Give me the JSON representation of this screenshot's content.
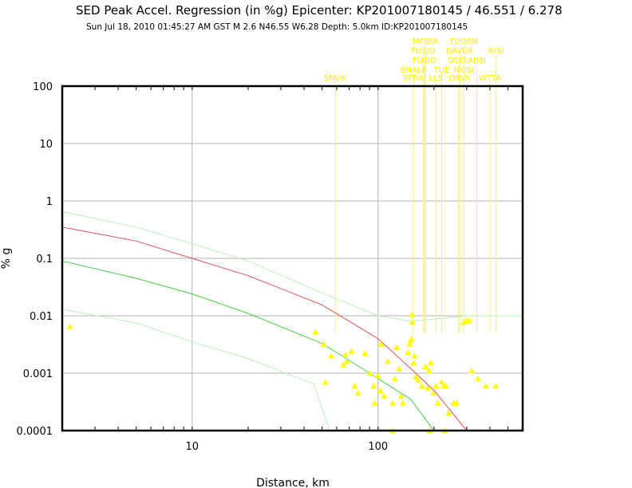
{
  "chart_data": {
    "type": "scatter",
    "title": "SED Peak Accel. Regression (in %g) Epicenter: KP201007180145 / 46.551 / 6.278",
    "subtitle": "Sun Jul 18, 2010 01:45:27 AM GST   M 2.6   N46.55 W6.28   Depth: 5.0km   ID:KP201007180145",
    "xlabel": "Distance, km",
    "ylabel": "% g",
    "x_scale": "log",
    "y_scale": "log",
    "xlim": [
      2,
      600
    ],
    "ylim": [
      0.0001,
      100
    ],
    "x_ticks": [
      "10",
      "100"
    ],
    "y_ticks": [
      "100",
      "10",
      "1",
      "0.1",
      "0.01",
      "0.001",
      "0.0001"
    ],
    "grid": true,
    "colors": {
      "frame": "#000000",
      "grid": "#b4b4b4",
      "mean_curve": "#e05050",
      "lower_curve": "#44d044",
      "upper_band": "#b8f0b8",
      "lower_band": "#b8f0b8",
      "markers": "#ffff00",
      "station_labels": "#ffee00",
      "leader_lines": "#f4f088"
    },
    "curves": [
      {
        "role": "mean",
        "points": [
          [
            2,
            0.35
          ],
          [
            5,
            0.2
          ],
          [
            10,
            0.1
          ],
          [
            20,
            0.05
          ],
          [
            50,
            0.0155
          ],
          [
            100,
            0.004
          ],
          [
            150,
            0.0012
          ],
          [
            200,
            0.0005
          ],
          [
            300,
            0.0001
          ]
        ]
      },
      {
        "role": "lower",
        "points": [
          [
            2,
            0.09
          ],
          [
            5,
            0.045
          ],
          [
            10,
            0.024
          ],
          [
            20,
            0.011
          ],
          [
            50,
            0.0033
          ],
          [
            90,
            0.001
          ],
          [
            150,
            0.00035
          ],
          [
            200,
            0.0001
          ]
        ]
      },
      {
        "role": "upper-band",
        "points": [
          [
            2,
            0.65
          ],
          [
            5,
            0.35
          ],
          [
            10,
            0.18
          ],
          [
            20,
            0.09
          ],
          [
            50,
            0.025
          ],
          [
            100,
            0.01
          ],
          [
            150,
            0.008
          ],
          [
            300,
            0.01
          ],
          [
            600,
            0.01
          ]
        ]
      },
      {
        "role": "lower-band",
        "points": [
          [
            2,
            0.013
          ],
          [
            5,
            0.0075
          ],
          [
            10,
            0.0035
          ],
          [
            20,
            0.0018
          ],
          [
            45,
            0.00065
          ],
          [
            55,
            0.0001
          ]
        ]
      }
    ],
    "points": [
      [
        2.2,
        0.0065
      ],
      [
        46,
        0.0052
      ],
      [
        51,
        0.0032
      ],
      [
        52,
        0.0007
      ],
      [
        56,
        0.002
      ],
      [
        65,
        0.0014
      ],
      [
        67,
        0.0021
      ],
      [
        68,
        0.0016
      ],
      [
        72,
        0.0024
      ],
      [
        75,
        0.0006
      ],
      [
        78,
        0.00045
      ],
      [
        85,
        0.0022
      ],
      [
        90,
        0.001
      ],
      [
        95,
        0.0006
      ],
      [
        96,
        0.0003
      ],
      [
        100,
        0.0009
      ],
      [
        103,
        0.0005
      ],
      [
        104,
        0.0032
      ],
      [
        108,
        0.0004
      ],
      [
        113,
        0.0016
      ],
      [
        120,
        0.0003
      ],
      [
        123,
        0.0008
      ],
      [
        126,
        0.0028
      ],
      [
        130,
        0.0012
      ],
      [
        133,
        0.0004
      ],
      [
        136,
        0.0003
      ],
      [
        145,
        0.0023
      ],
      [
        148,
        0.0032
      ],
      [
        150,
        0.0038
      ],
      [
        151,
        0.004
      ],
      [
        152,
        0.0105
      ],
      [
        153,
        0.0078
      ],
      [
        155,
        0.0015
      ],
      [
        157,
        0.002
      ],
      [
        160,
        0.00085
      ],
      [
        165,
        0.00075
      ],
      [
        172,
        0.0006
      ],
      [
        180,
        0.0013
      ],
      [
        185,
        0.00055
      ],
      [
        188,
        0.0011
      ],
      [
        192,
        0.0015
      ],
      [
        198,
        0.00045
      ],
      [
        205,
        0.0006
      ],
      [
        210,
        0.0003
      ],
      [
        220,
        0.0007
      ],
      [
        226,
        0.0006
      ],
      [
        232,
        0.0006
      ],
      [
        240,
        0.0002
      ],
      [
        255,
        0.0003
      ],
      [
        265,
        0.0003
      ],
      [
        290,
        0.0078
      ],
      [
        300,
        0.0083
      ],
      [
        310,
        0.0082
      ],
      [
        320,
        0.0011
      ],
      [
        345,
        0.0008
      ],
      [
        380,
        0.0006
      ],
      [
        430,
        0.0006
      ],
      [
        120,
        0.0001
      ],
      [
        190,
        0.0001
      ],
      [
        230,
        0.0001
      ]
    ],
    "stations": [
      {
        "name": "SMUK",
        "x": 59
      },
      {
        "name": "MFSFA",
        "x": 180
      },
      {
        "name": "FUORN",
        "x": 290
      },
      {
        "name": "FUSIO",
        "x": 175
      },
      {
        "name": "DAVOX",
        "x": 275
      },
      {
        "name": "RISI",
        "x": 430
      },
      {
        "name": "FUSIO",
        "x": 178
      },
      {
        "name": "SGEL",
        "x": 270
      },
      {
        "name": "ABSI",
        "x": 340
      },
      {
        "name": "BNALP",
        "x": 155
      },
      {
        "name": "TUE",
        "x": 220
      },
      {
        "name": "MOSI",
        "x": 290
      },
      {
        "name": "SFRA",
        "x": 155
      },
      {
        "name": "LLS",
        "x": 205
      },
      {
        "name": "DAVA",
        "x": 275
      },
      {
        "name": "WTTA",
        "x": 400
      }
    ]
  }
}
